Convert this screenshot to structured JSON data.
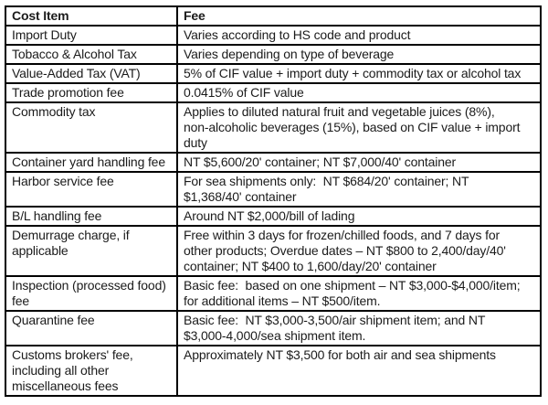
{
  "colors": {
    "text": "#1b1b1b",
    "border": "#000000",
    "background": "#ffffff"
  },
  "table": {
    "headers": [
      "Cost Item",
      "Fee"
    ],
    "rows": [
      {
        "item": "Import Duty",
        "fee": "Varies according to HS code and product"
      },
      {
        "item": "Tobacco & Alcohol Tax",
        "fee": "Varies depending on type of beverage"
      },
      {
        "item": "Value-Added Tax (VAT)",
        "fee": "5% of CIF value + import duty + commodity tax or alcohol tax"
      },
      {
        "item": "Trade promotion fee",
        "fee": "0.0415% of CIF value"
      },
      {
        "item": "Commodity tax",
        "fee": "Applies to diluted natural fruit and vegetable juices (8%),\nnon-alcoholic beverages (15%), based on CIF value + import\nduty"
      },
      {
        "item": "Container yard handling fee",
        "fee": "NT $5,600/20' container; NT $7,000/40' container"
      },
      {
        "item": "Harbor service fee",
        "fee": "For sea shipments only:  NT $684/20' container; NT\n$1,368/40' container"
      },
      {
        "item": "B/L handling fee",
        "fee": "Around NT $2,000/bill of lading"
      },
      {
        "item": "Demurrage charge, if\napplicable",
        "fee": "Free within 3 days for frozen/chilled foods, and 7 days for\nother products; Overdue dates – NT $800 to 2,400/day/40'\ncontainer; NT $400 to 1,600/day/20' container"
      },
      {
        "item": "Inspection (processed food)\nfee",
        "fee": "Basic fee:  based on one shipment – NT $3,000-$4,000/item;\nfor additional items – NT $500/item."
      },
      {
        "item": "Quarantine fee",
        "fee": "Basic fee:  NT $3,000-3,500/air shipment item; and NT\n$3,000-4,000/sea shipment item."
      },
      {
        "item": "Customs brokers' fee,\nincluding all other\nmiscellaneous fees",
        "fee": "Approximately NT $3,500 for both air and sea shipments"
      }
    ]
  }
}
